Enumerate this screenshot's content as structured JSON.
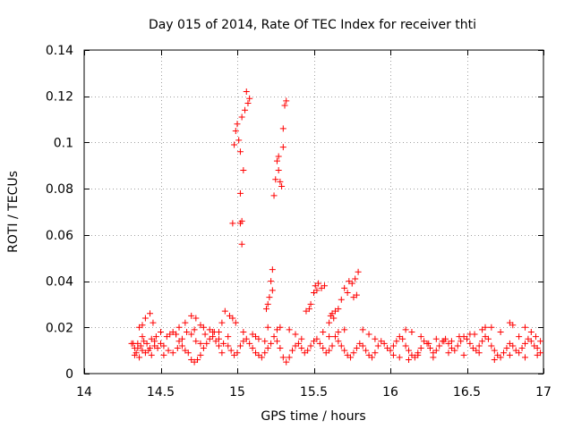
{
  "chart_data": {
    "type": "scatter",
    "title": "Day 015 of 2014, Rate Of TEC Index for receiver thti",
    "xlabel": "GPS time / hours",
    "ylabel": "ROTI / TECUs",
    "xlim": [
      14,
      17
    ],
    "ylim": [
      0,
      0.14
    ],
    "xticks": [
      14,
      14.5,
      15,
      15.5,
      16,
      16.5,
      17
    ],
    "xtick_labels": [
      "14",
      "14.5",
      "15",
      "15.5",
      "16",
      "16.5",
      "17"
    ],
    "yticks": [
      0,
      0.02,
      0.04,
      0.06,
      0.08,
      0.1,
      0.12,
      0.14
    ],
    "ytick_labels": [
      "0",
      "0.02",
      "0.04",
      "0.06",
      "0.08",
      "0.1",
      "0.12",
      "0.14"
    ],
    "grid": true,
    "marker": "+",
    "marker_color": "#ff0000",
    "series": [
      {
        "name": "ROTI",
        "points": [
          [
            15.06,
            0.122
          ],
          [
            15.08,
            0.119
          ],
          [
            15.07,
            0.117
          ],
          [
            15.05,
            0.114
          ],
          [
            15.03,
            0.111
          ],
          [
            15.0,
            0.108
          ],
          [
            14.99,
            0.105
          ],
          [
            15.01,
            0.101
          ],
          [
            14.98,
            0.099
          ],
          [
            15.02,
            0.096
          ],
          [
            15.04,
            0.088
          ],
          [
            15.02,
            0.078
          ],
          [
            15.03,
            0.066
          ],
          [
            15.02,
            0.065
          ],
          [
            14.97,
            0.065
          ],
          [
            15.03,
            0.056
          ],
          [
            15.32,
            0.118
          ],
          [
            15.31,
            0.116
          ],
          [
            15.3,
            0.106
          ],
          [
            15.3,
            0.098
          ],
          [
            15.27,
            0.094
          ],
          [
            15.26,
            0.092
          ],
          [
            15.27,
            0.088
          ],
          [
            15.25,
            0.084
          ],
          [
            15.28,
            0.083
          ],
          [
            15.29,
            0.081
          ],
          [
            15.24,
            0.077
          ],
          [
            15.23,
            0.045
          ],
          [
            15.22,
            0.04
          ],
          [
            15.23,
            0.036
          ],
          [
            15.21,
            0.033
          ],
          [
            15.2,
            0.03
          ],
          [
            15.19,
            0.028
          ],
          [
            15.53,
            0.039
          ],
          [
            15.55,
            0.037
          ],
          [
            15.52,
            0.036
          ],
          [
            15.57,
            0.038
          ],
          [
            15.5,
            0.035
          ],
          [
            15.51,
            0.038
          ],
          [
            15.48,
            0.03
          ],
          [
            15.47,
            0.028
          ],
          [
            15.45,
            0.027
          ],
          [
            15.73,
            0.04
          ],
          [
            15.75,
            0.039
          ],
          [
            15.72,
            0.035
          ],
          [
            15.7,
            0.037
          ],
          [
            15.68,
            0.032
          ],
          [
            15.66,
            0.028
          ],
          [
            15.64,
            0.027
          ],
          [
            15.62,
            0.026
          ],
          [
            15.61,
            0.025
          ],
          [
            15.79,
            0.044
          ],
          [
            15.77,
            0.041
          ],
          [
            15.78,
            0.034
          ],
          [
            15.76,
            0.033
          ],
          [
            15.6,
            0.022
          ],
          [
            15.63,
            0.024
          ],
          [
            15.66,
            0.018
          ],
          [
            15.7,
            0.019
          ],
          [
            14.92,
            0.027
          ],
          [
            14.95,
            0.025
          ],
          [
            14.97,
            0.024
          ],
          [
            14.9,
            0.022
          ],
          [
            14.99,
            0.022
          ],
          [
            14.4,
            0.024
          ],
          [
            14.43,
            0.026
          ],
          [
            14.38,
            0.021
          ],
          [
            14.36,
            0.02
          ],
          [
            14.45,
            0.022
          ],
          [
            14.7,
            0.025
          ],
          [
            14.73,
            0.024
          ],
          [
            14.66,
            0.022
          ],
          [
            14.76,
            0.021
          ],
          [
            14.62,
            0.02
          ],
          [
            14.35,
            0.013
          ],
          [
            14.37,
            0.012
          ],
          [
            14.39,
            0.014
          ],
          [
            14.41,
            0.013
          ],
          [
            14.43,
            0.011
          ],
          [
            14.32,
            0.013
          ],
          [
            14.34,
            0.009
          ],
          [
            14.36,
            0.007
          ],
          [
            14.38,
            0.01
          ],
          [
            14.4,
            0.009
          ],
          [
            14.42,
            0.01
          ],
          [
            14.44,
            0.008
          ],
          [
            14.46,
            0.012
          ],
          [
            14.48,
            0.011
          ],
          [
            14.5,
            0.013
          ],
          [
            14.52,
            0.012
          ],
          [
            14.54,
            0.016
          ],
          [
            14.56,
            0.017
          ],
          [
            14.58,
            0.018
          ],
          [
            14.6,
            0.017
          ],
          [
            14.62,
            0.014
          ],
          [
            14.64,
            0.012
          ],
          [
            14.66,
            0.01
          ],
          [
            14.68,
            0.009
          ],
          [
            14.7,
            0.006
          ],
          [
            14.72,
            0.005
          ],
          [
            14.74,
            0.006
          ],
          [
            14.76,
            0.008
          ],
          [
            14.78,
            0.011
          ],
          [
            14.8,
            0.013
          ],
          [
            14.82,
            0.015
          ],
          [
            14.84,
            0.016
          ],
          [
            14.86,
            0.014
          ],
          [
            14.88,
            0.012
          ],
          [
            14.9,
            0.009
          ],
          [
            14.52,
            0.008
          ],
          [
            14.55,
            0.01
          ],
          [
            14.58,
            0.009
          ],
          [
            14.61,
            0.011
          ],
          [
            14.64,
            0.015
          ],
          [
            14.67,
            0.018
          ],
          [
            14.7,
            0.017
          ],
          [
            14.73,
            0.014
          ],
          [
            14.76,
            0.013
          ],
          [
            14.79,
            0.017
          ],
          [
            14.82,
            0.019
          ],
          [
            14.85,
            0.018
          ],
          [
            14.88,
            0.015
          ],
          [
            14.91,
            0.013
          ],
          [
            14.94,
            0.012
          ],
          [
            14.96,
            0.01
          ],
          [
            14.98,
            0.008
          ],
          [
            15.0,
            0.009
          ],
          [
            15.02,
            0.012
          ],
          [
            15.04,
            0.014
          ],
          [
            15.06,
            0.015
          ],
          [
            15.08,
            0.013
          ],
          [
            15.1,
            0.011
          ],
          [
            15.12,
            0.009
          ],
          [
            15.14,
            0.008
          ],
          [
            15.16,
            0.007
          ],
          [
            15.18,
            0.009
          ],
          [
            15.2,
            0.011
          ],
          [
            15.22,
            0.013
          ],
          [
            15.24,
            0.016
          ],
          [
            15.26,
            0.014
          ],
          [
            15.28,
            0.011
          ],
          [
            15.3,
            0.007
          ],
          [
            15.32,
            0.005
          ],
          [
            15.34,
            0.007
          ],
          [
            15.36,
            0.01
          ],
          [
            15.38,
            0.012
          ],
          [
            15.4,
            0.013
          ],
          [
            15.42,
            0.011
          ],
          [
            15.44,
            0.009
          ],
          [
            15.46,
            0.01
          ],
          [
            15.48,
            0.012
          ],
          [
            15.5,
            0.014
          ],
          [
            15.52,
            0.015
          ],
          [
            15.54,
            0.013
          ],
          [
            15.56,
            0.011
          ],
          [
            15.58,
            0.009
          ],
          [
            15.6,
            0.01
          ],
          [
            15.62,
            0.012
          ],
          [
            15.64,
            0.016
          ],
          [
            15.66,
            0.014
          ],
          [
            15.68,
            0.012
          ],
          [
            15.7,
            0.01
          ],
          [
            15.72,
            0.008
          ],
          [
            15.74,
            0.007
          ],
          [
            15.76,
            0.009
          ],
          [
            15.78,
            0.011
          ],
          [
            15.8,
            0.013
          ],
          [
            15.82,
            0.012
          ],
          [
            15.84,
            0.01
          ],
          [
            15.86,
            0.008
          ],
          [
            15.88,
            0.007
          ],
          [
            15.9,
            0.009
          ],
          [
            15.92,
            0.012
          ],
          [
            15.94,
            0.014
          ],
          [
            15.96,
            0.013
          ],
          [
            15.98,
            0.011
          ],
          [
            16.0,
            0.01
          ],
          [
            16.02,
            0.012
          ],
          [
            16.04,
            0.014
          ],
          [
            16.06,
            0.016
          ],
          [
            16.08,
            0.015
          ],
          [
            16.1,
            0.012
          ],
          [
            16.12,
            0.01
          ],
          [
            16.14,
            0.008
          ],
          [
            16.16,
            0.007
          ],
          [
            16.18,
            0.009
          ],
          [
            16.2,
            0.011
          ],
          [
            16.22,
            0.014
          ],
          [
            16.24,
            0.013
          ],
          [
            16.26,
            0.011
          ],
          [
            16.28,
            0.009
          ],
          [
            16.3,
            0.01
          ],
          [
            16.32,
            0.012
          ],
          [
            16.34,
            0.014
          ],
          [
            16.36,
            0.015
          ],
          [
            16.38,
            0.013
          ],
          [
            16.4,
            0.011
          ],
          [
            16.42,
            0.01
          ],
          [
            16.44,
            0.012
          ],
          [
            16.46,
            0.014
          ],
          [
            16.48,
            0.016
          ],
          [
            16.5,
            0.015
          ],
          [
            16.52,
            0.013
          ],
          [
            16.54,
            0.011
          ],
          [
            16.56,
            0.01
          ],
          [
            16.58,
            0.012
          ],
          [
            16.6,
            0.014
          ],
          [
            16.62,
            0.016
          ],
          [
            16.64,
            0.015
          ],
          [
            16.66,
            0.012
          ],
          [
            16.68,
            0.01
          ],
          [
            16.7,
            0.008
          ],
          [
            16.72,
            0.007
          ],
          [
            16.74,
            0.009
          ],
          [
            16.76,
            0.011
          ],
          [
            16.78,
            0.013
          ],
          [
            16.8,
            0.012
          ],
          [
            16.82,
            0.01
          ],
          [
            16.84,
            0.009
          ],
          [
            16.86,
            0.011
          ],
          [
            16.88,
            0.013
          ],
          [
            16.9,
            0.015
          ],
          [
            16.92,
            0.014
          ],
          [
            16.94,
            0.012
          ],
          [
            16.96,
            0.011
          ],
          [
            16.98,
            0.009
          ],
          [
            14.6,
            0.017
          ],
          [
            14.84,
            0.018
          ],
          [
            15.1,
            0.017
          ],
          [
            15.14,
            0.015
          ],
          [
            15.18,
            0.014
          ],
          [
            15.34,
            0.019
          ],
          [
            15.38,
            0.017
          ],
          [
            15.42,
            0.015
          ],
          [
            15.56,
            0.018
          ],
          [
            15.6,
            0.016
          ],
          [
            15.82,
            0.019
          ],
          [
            15.86,
            0.017
          ],
          [
            15.9,
            0.015
          ],
          [
            16.1,
            0.019
          ],
          [
            16.14,
            0.018
          ],
          [
            16.2,
            0.016
          ],
          [
            16.3,
            0.015
          ],
          [
            16.4,
            0.014
          ],
          [
            16.52,
            0.017
          ],
          [
            16.6,
            0.019
          ],
          [
            16.66,
            0.02
          ],
          [
            16.72,
            0.018
          ],
          [
            16.78,
            0.022
          ],
          [
            16.8,
            0.021
          ],
          [
            16.84,
            0.016
          ],
          [
            16.88,
            0.02
          ],
          [
            16.92,
            0.018
          ],
          [
            16.95,
            0.016
          ],
          [
            16.98,
            0.014
          ],
          [
            16.62,
            0.02
          ],
          [
            16.55,
            0.017
          ],
          [
            16.45,
            0.016
          ],
          [
            16.35,
            0.014
          ],
          [
            16.25,
            0.013
          ],
          [
            16.02,
            0.008
          ],
          [
            16.06,
            0.007
          ],
          [
            16.12,
            0.006
          ],
          [
            16.18,
            0.008
          ],
          [
            16.28,
            0.007
          ],
          [
            16.38,
            0.009
          ],
          [
            16.48,
            0.008
          ],
          [
            16.58,
            0.009
          ],
          [
            16.68,
            0.006
          ],
          [
            16.78,
            0.008
          ],
          [
            16.88,
            0.007
          ],
          [
            16.96,
            0.008
          ],
          [
            15.2,
            0.02
          ],
          [
            15.26,
            0.019
          ],
          [
            15.28,
            0.02
          ],
          [
            15.12,
            0.016
          ],
          [
            15.04,
            0.018
          ],
          [
            14.94,
            0.016
          ],
          [
            14.88,
            0.018
          ],
          [
            14.78,
            0.02
          ],
          [
            14.72,
            0.019
          ],
          [
            14.5,
            0.018
          ],
          [
            14.47,
            0.016
          ],
          [
            14.44,
            0.015
          ],
          [
            14.46,
            0.014
          ],
          [
            14.38,
            0.016
          ],
          [
            14.33,
            0.011
          ],
          [
            14.31,
            0.013
          ],
          [
            14.33,
            0.008
          ],
          [
            14.35,
            0.011
          ]
        ]
      }
    ]
  }
}
